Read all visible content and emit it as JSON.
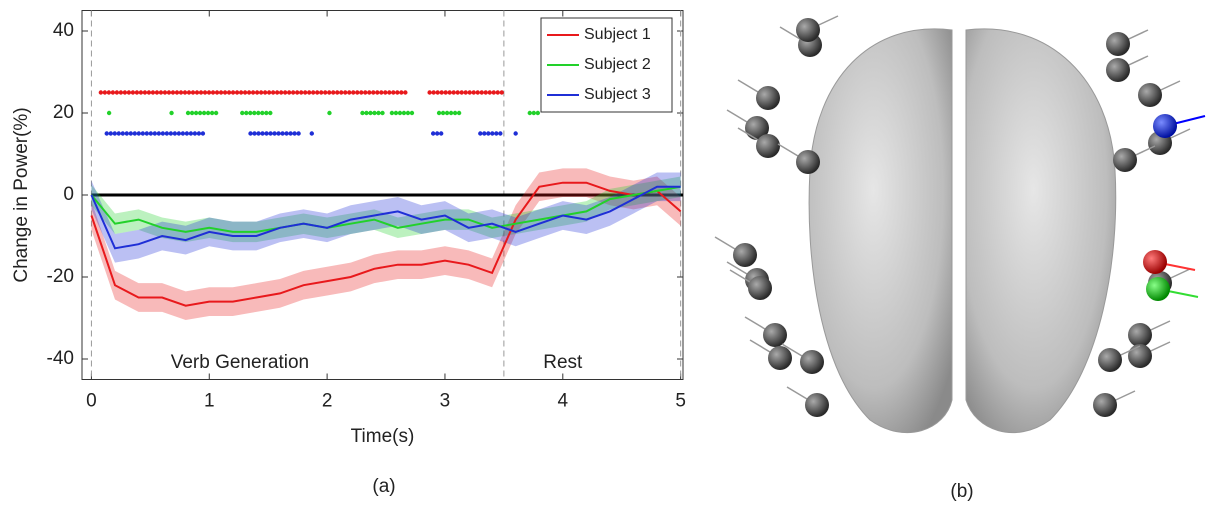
{
  "chart_data": {
    "type": "line",
    "xlabel": "Time(s)",
    "ylabel": "Change in Power(%)",
    "x": [
      0,
      0.2,
      0.4,
      0.6,
      0.8,
      1.0,
      1.2,
      1.4,
      1.6,
      1.8,
      2.0,
      2.2,
      2.4,
      2.6,
      2.8,
      3.0,
      3.2,
      3.4,
      3.6,
      3.8,
      4.0,
      4.2,
      4.4,
      4.6,
      4.8,
      5.0
    ],
    "series": [
      {
        "name": "Subject 1",
        "color": "#e8191c",
        "error": 3.5,
        "significance_y": 25,
        "significant_ranges": [
          [
            0.08,
            2.67
          ],
          [
            2.87,
            3.5
          ]
        ],
        "values": [
          -5,
          -22,
          -25,
          -25,
          -27,
          -26,
          -26,
          -25,
          -24,
          -22,
          -21,
          -20,
          -18,
          -17,
          -17,
          -16,
          -17,
          -19,
          -6,
          2,
          3,
          3,
          1,
          0,
          1,
          -4
        ]
      },
      {
        "name": "Subject 2",
        "color": "#22d12a",
        "error": 2.5,
        "significance_y": 20,
        "significant_ranges": [
          [
            0.15,
            0.15
          ],
          [
            0.68,
            0.68
          ],
          [
            0.82,
            1.08
          ],
          [
            1.28,
            1.53
          ],
          [
            2.02,
            2.02
          ],
          [
            2.3,
            2.48
          ],
          [
            2.55,
            2.75
          ],
          [
            2.95,
            3.15
          ],
          [
            3.72,
            3.82
          ]
        ],
        "values": [
          0,
          -7,
          -6,
          -8,
          -9,
          -8,
          -9,
          -9,
          -8,
          -7,
          -8,
          -7,
          -6,
          -8,
          -7,
          -6,
          -6,
          -8,
          -7,
          -6,
          -5,
          -4,
          -1,
          0,
          1,
          2
        ]
      },
      {
        "name": "Subject 3",
        "color": "#1f2fd6",
        "error": 3.5,
        "significance_y": 15,
        "significant_ranges": [
          [
            0.13,
            0.95
          ],
          [
            1.35,
            1.78
          ],
          [
            1.87,
            1.87
          ],
          [
            2.9,
            2.97
          ],
          [
            3.3,
            3.5
          ],
          [
            3.6,
            3.6
          ]
        ],
        "values": [
          0,
          -13,
          -12,
          -10,
          -11,
          -9,
          -10,
          -10,
          -8,
          -7,
          -8,
          -6,
          -5,
          -4,
          -6,
          -5,
          -8,
          -7,
          -9,
          -7,
          -5,
          -6,
          -4,
          -1,
          2,
          2
        ]
      }
    ],
    "xlim": [
      -0.08,
      5.02
    ],
    "ylim": [
      -45,
      45
    ],
    "xticks": [
      0,
      1,
      2,
      3,
      4,
      5
    ],
    "yticks": [
      -40,
      -20,
      0,
      20,
      40
    ],
    "event_lines": [
      0,
      3.5,
      5
    ],
    "annotations": [
      {
        "text": "Verb Generation",
        "x": 1.26,
        "y": -41
      },
      {
        "text": "Rest",
        "x": 4.0,
        "y": -41
      }
    ],
    "legend": "upper right"
  },
  "panel_labels": [
    "(a)",
    "(b)"
  ]
}
